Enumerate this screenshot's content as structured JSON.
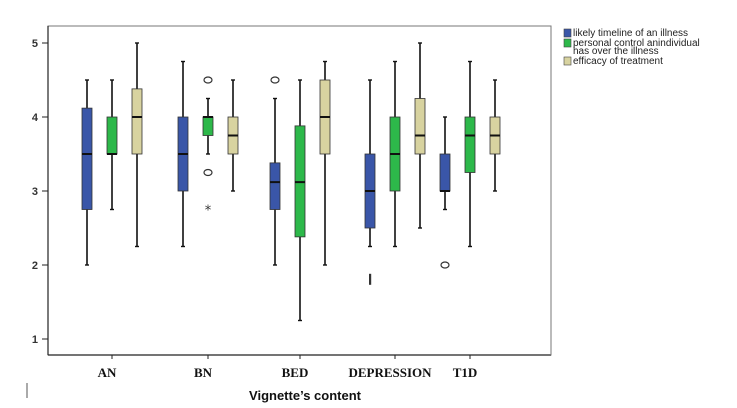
{
  "chart_data": {
    "type": "boxplot",
    "title": "",
    "xlabel": "Vignette’s content",
    "ylabel": "",
    "ylim": [
      0.8,
      5.2
    ],
    "yticks": [
      1,
      2,
      3,
      4,
      5
    ],
    "grid": false,
    "legend_position": "top-right",
    "categories": [
      "AN",
      "BN",
      "BED",
      "DEPRESSION",
      "T1D"
    ],
    "series": [
      {
        "name": "likely timeline of an illness",
        "color": "#3a56a8",
        "boxes": [
          {
            "min": 2.0,
            "q1": 2.75,
            "median": 3.5,
            "q3": 4.12,
            "max": 4.5,
            "outliers": [],
            "extremes": []
          },
          {
            "min": 2.25,
            "q1": 3.0,
            "median": 3.5,
            "q3": 4.0,
            "max": 4.75,
            "outliers": [],
            "extremes": []
          },
          {
            "min": 2.0,
            "q1": 2.75,
            "median": 3.12,
            "q3": 3.38,
            "max": 4.25,
            "outliers": [
              4.5
            ],
            "extremes": []
          },
          {
            "min": 2.25,
            "q1": 2.5,
            "median": 3.0,
            "q3": 3.5,
            "max": 4.5,
            "outliers": [
              1.8
            ],
            "extremes": []
          },
          {
            "min": 2.75,
            "q1": 3.0,
            "median": 3.0,
            "q3": 3.5,
            "max": 4.0,
            "outliers": [
              2.0
            ],
            "extremes": []
          }
        ]
      },
      {
        "name": "personal control anindividual has over the illness",
        "color": "#2db84a",
        "boxes": [
          {
            "min": 2.75,
            "q1": 3.5,
            "median": 3.5,
            "q3": 4.0,
            "max": 4.5,
            "outliers": [],
            "extremes": []
          },
          {
            "min": 3.5,
            "q1": 3.75,
            "median": 4.0,
            "q3": 4.0,
            "max": 4.25,
            "outliers": [
              4.5,
              3.25
            ],
            "extremes": [
              2.75
            ]
          },
          {
            "min": 1.25,
            "q1": 2.38,
            "median": 3.12,
            "q3": 3.88,
            "max": 4.5,
            "outliers": [],
            "extremes": []
          },
          {
            "min": 2.25,
            "q1": 3.0,
            "median": 3.5,
            "q3": 4.0,
            "max": 4.75,
            "outliers": [],
            "extremes": []
          },
          {
            "min": 2.25,
            "q1": 3.25,
            "median": 3.75,
            "q3": 4.0,
            "max": 4.75,
            "outliers": [],
            "extremes": []
          }
        ]
      },
      {
        "name": "efficacy of treatment",
        "color": "#d8d3a0",
        "boxes": [
          {
            "min": 2.25,
            "q1": 3.5,
            "median": 4.0,
            "q3": 4.38,
            "max": 5.0,
            "outliers": [],
            "extremes": []
          },
          {
            "min": 3.0,
            "q1": 3.5,
            "median": 3.75,
            "q3": 4.0,
            "max": 4.5,
            "outliers": [],
            "extremes": []
          },
          {
            "min": 2.0,
            "q1": 3.5,
            "median": 4.0,
            "q3": 4.5,
            "max": 4.75,
            "outliers": [],
            "extremes": []
          },
          {
            "min": 2.5,
            "q1": 3.5,
            "median": 3.75,
            "q3": 4.25,
            "max": 5.0,
            "outliers": [],
            "extremes": []
          },
          {
            "min": 3.0,
            "q1": 3.5,
            "median": 3.75,
            "q3": 4.0,
            "max": 4.5,
            "outliers": [],
            "extremes": []
          }
        ]
      }
    ],
    "legend": [
      {
        "lines": [
          "likely timeline of an illness"
        ],
        "color": "#3a56a8"
      },
      {
        "lines": [
          "personal control anindividual",
          "has over the illness"
        ],
        "color": "#2db84a"
      },
      {
        "lines": [
          "efficacy of treatment"
        ],
        "color": "#d8d3a0"
      }
    ]
  }
}
